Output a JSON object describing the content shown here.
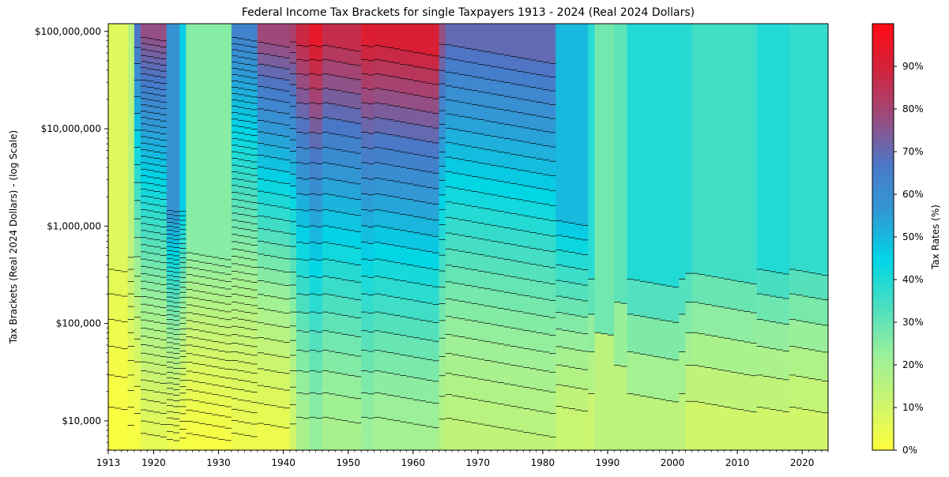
{
  "chart_data": {
    "type": "heatmap",
    "title": "Federal Income Tax Brackets for single Taxpayers 1913 - 2024 (Real 2024 Dollars)",
    "xlabel": "",
    "ylabel": "Tax Brackets (Real 2024 Dollars) - (log Scale)",
    "y_scale": "log",
    "xlim": [
      1913,
      2024
    ],
    "ylim": [
      5000,
      120000000
    ],
    "x_ticks": [
      "1913",
      "1920",
      "1930",
      "1940",
      "1950",
      "1960",
      "1970",
      "1980",
      "1990",
      "2000",
      "2010",
      "2020"
    ],
    "y_ticks": [
      {
        "value": 10000,
        "label": "$10,000"
      },
      {
        "value": 100000,
        "label": "$100,000"
      },
      {
        "value": 1000000,
        "label": "$1,000,000"
      },
      {
        "value": 10000000,
        "label": "$10,000,000"
      },
      {
        "value": 100000000,
        "label": "$100,000,000"
      }
    ],
    "colorbar": {
      "label": "Tax Rates (%)",
      "range": [
        0,
        100
      ],
      "ticks": [
        "0%",
        "10%",
        "20%",
        "30%",
        "40%",
        "50%",
        "60%",
        "70%",
        "80%",
        "90%"
      ],
      "colors": [
        "#ffff3c",
        "#ccf56e",
        "#9af09a",
        "#4ddfc0",
        "#00d6e6",
        "#2f9bd6",
        "#4a78c8",
        "#9a4c80",
        "#d0243c",
        "#ff0a14"
      ]
    },
    "top_rate_by_year": [
      {
        "year": 1913,
        "top_rate": 7,
        "bottom_rate": 1,
        "bottom_threshold": 5000,
        "num_brackets": 7
      },
      {
        "year": 1916,
        "top_rate": 15,
        "bottom_rate": 2,
        "bottom_threshold": 5000,
        "num_brackets": 14
      },
      {
        "year": 1917,
        "top_rate": 67,
        "bottom_rate": 2,
        "bottom_threshold": 5000,
        "num_brackets": 21
      },
      {
        "year": 1918,
        "top_rate": 77,
        "bottom_rate": 6,
        "bottom_threshold": 5000,
        "num_brackets": 56
      },
      {
        "year": 1922,
        "top_rate": 58,
        "bottom_rate": 4,
        "bottom_threshold": 5000,
        "num_brackets": 50
      },
      {
        "year": 1924,
        "top_rate": 46,
        "bottom_rate": 2,
        "bottom_threshold": 5000,
        "num_brackets": 43
      },
      {
        "year": 1925,
        "top_rate": 25,
        "bottom_rate": 1.5,
        "bottom_threshold": 5000,
        "num_brackets": 23
      },
      {
        "year": 1932,
        "top_rate": 63,
        "bottom_rate": 4,
        "bottom_threshold": 5000,
        "num_brackets": 55
      },
      {
        "year": 1936,
        "top_rate": 79,
        "bottom_rate": 4,
        "bottom_threshold": 5000,
        "num_brackets": 31
      },
      {
        "year": 1941,
        "top_rate": 81,
        "bottom_rate": 10,
        "bottom_threshold": 5000,
        "num_brackets": 32
      },
      {
        "year": 1942,
        "top_rate": 88,
        "bottom_rate": 19,
        "bottom_threshold": 5000,
        "num_brackets": 24
      },
      {
        "year": 1944,
        "top_rate": 94,
        "bottom_rate": 23,
        "bottom_threshold": 5000,
        "num_brackets": 24
      },
      {
        "year": 1946,
        "top_rate": 86.45,
        "bottom_rate": 19,
        "bottom_threshold": 5000,
        "num_brackets": 24
      },
      {
        "year": 1952,
        "top_rate": 92,
        "bottom_rate": 22.2,
        "bottom_threshold": 5000,
        "num_brackets": 24
      },
      {
        "year": 1954,
        "top_rate": 91,
        "bottom_rate": 20,
        "bottom_threshold": 5000,
        "num_brackets": 24
      },
      {
        "year": 1964,
        "top_rate": 77,
        "bottom_rate": 16,
        "bottom_threshold": 5000,
        "num_brackets": 26
      },
      {
        "year": 1965,
        "top_rate": 70,
        "bottom_rate": 14,
        "bottom_threshold": 5000,
        "num_brackets": 25
      },
      {
        "year": 1982,
        "top_rate": 50,
        "bottom_rate": 12,
        "bottom_threshold": 7000,
        "num_brackets": 13
      },
      {
        "year": 1987,
        "top_rate": 38.5,
        "bottom_rate": 11,
        "bottom_threshold": 5000,
        "num_brackets": 5
      },
      {
        "year": 1988,
        "top_rate": 28,
        "bottom_rate": 15,
        "bottom_threshold": 5000,
        "num_brackets": 2
      },
      {
        "year": 1991,
        "top_rate": 31,
        "bottom_rate": 15,
        "bottom_threshold": 5000,
        "num_brackets": 3
      },
      {
        "year": 1993,
        "top_rate": 39.6,
        "bottom_rate": 15,
        "bottom_threshold": 5000,
        "num_brackets": 5
      },
      {
        "year": 2001,
        "top_rate": 39.1,
        "bottom_rate": 15,
        "bottom_threshold": 5000,
        "num_brackets": 5
      },
      {
        "year": 2002,
        "top_rate": 38.6,
        "bottom_rate": 10,
        "bottom_threshold": 5000,
        "num_brackets": 6
      },
      {
        "year": 2003,
        "top_rate": 35,
        "bottom_rate": 10,
        "bottom_threshold": 5000,
        "num_brackets": 6
      },
      {
        "year": 2013,
        "top_rate": 39.6,
        "bottom_rate": 10,
        "bottom_threshold": 5000,
        "num_brackets": 7
      },
      {
        "year": 2018,
        "top_rate": 37,
        "bottom_rate": 10,
        "bottom_threshold": 5000,
        "num_brackets": 7
      }
    ]
  }
}
